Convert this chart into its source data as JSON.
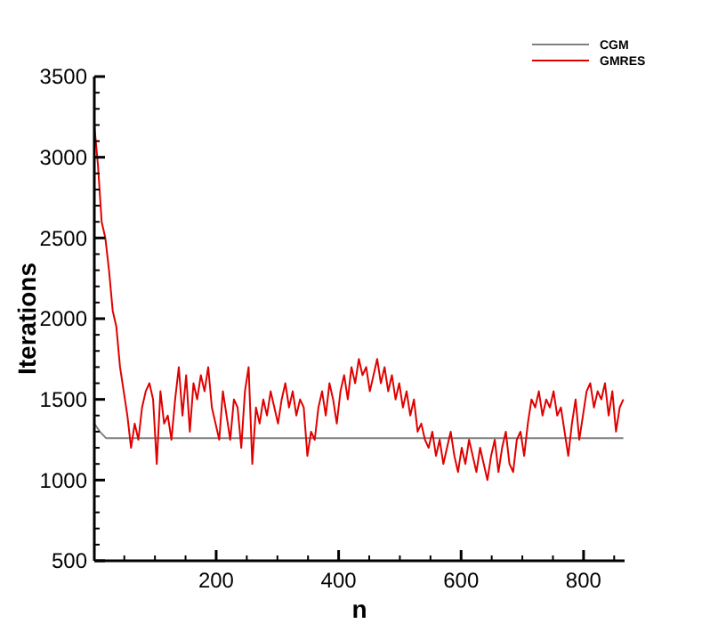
{
  "chart_data": {
    "type": "line",
    "xlabel": "n",
    "ylabel": "Iterations",
    "xlim": [
      1,
      867
    ],
    "ylim": [
      500,
      3500
    ],
    "xticks": [
      {
        "value": 50,
        "label": null
      },
      {
        "value": 100,
        "label": null
      },
      {
        "value": 150,
        "label": null
      },
      200,
      {
        "value": 250,
        "label": null
      },
      {
        "value": 300,
        "label": null
      },
      {
        "value": 350,
        "label": null
      },
      400,
      {
        "value": 450,
        "label": null
      },
      {
        "value": 500,
        "label": null
      },
      {
        "value": 550,
        "label": null
      },
      600,
      {
        "value": 650,
        "label": null
      },
      {
        "value": 700,
        "label": null
      },
      {
        "value": 750,
        "label": null
      },
      800,
      {
        "value": 850,
        "label": null
      }
    ],
    "yticks": [
      500,
      {
        "value": 600,
        "label": null
      },
      {
        "value": 700,
        "label": null
      },
      {
        "value": 800,
        "label": null
      },
      {
        "value": 900,
        "label": null
      },
      1000,
      {
        "value": 1100,
        "label": null
      },
      {
        "value": 1200,
        "label": null
      },
      {
        "value": 1300,
        "label": null
      },
      {
        "value": 1400,
        "label": null
      },
      1500,
      {
        "value": 1600,
        "label": null
      },
      {
        "value": 1700,
        "label": null
      },
      {
        "value": 1800,
        "label": null
      },
      {
        "value": 1900,
        "label": null
      },
      2000,
      {
        "value": 2100,
        "label": null
      },
      {
        "value": 2200,
        "label": null
      },
      {
        "value": 2300,
        "label": null
      },
      {
        "value": 2400,
        "label": null
      },
      2500,
      {
        "value": 2600,
        "label": null
      },
      {
        "value": 2700,
        "label": null
      },
      {
        "value": 2800,
        "label": null
      },
      {
        "value": 2900,
        "label": null
      },
      3000,
      {
        "value": 3100,
        "label": null
      },
      {
        "value": 3200,
        "label": null
      },
      {
        "value": 3300,
        "label": null
      },
      {
        "value": 3400,
        "label": null
      },
      3500
    ],
    "grid": false,
    "legend": "top right",
    "marker": "none",
    "line_style": "solid",
    "series": [
      {
        "name": "CGM",
        "color": "#808080",
        "x": [
          1,
          10,
          20,
          865
        ],
        "values": [
          1350,
          1300,
          1260,
          1260
        ]
      },
      {
        "name": "GMRES",
        "color": "#e00000",
        "x": [
          1,
          7,
          13,
          19,
          25,
          31,
          37,
          43,
          49,
          55,
          61,
          67,
          73,
          79,
          85,
          91,
          97,
          103,
          109,
          115,
          121,
          127,
          133,
          139,
          145,
          151,
          157,
          163,
          169,
          175,
          181,
          187,
          193,
          199,
          205,
          211,
          217,
          223,
          229,
          235,
          241,
          247,
          253,
          259,
          265,
          271,
          277,
          283,
          289,
          295,
          301,
          307,
          313,
          319,
          325,
          331,
          337,
          343,
          349,
          355,
          361,
          367,
          373,
          379,
          385,
          391,
          397,
          403,
          409,
          415,
          421,
          427,
          433,
          439,
          445,
          451,
          457,
          463,
          469,
          475,
          481,
          487,
          493,
          499,
          505,
          511,
          517,
          523,
          529,
          535,
          541,
          547,
          553,
          559,
          565,
          571,
          577,
          583,
          589,
          595,
          601,
          607,
          613,
          619,
          625,
          631,
          637,
          643,
          649,
          655,
          661,
          667,
          673,
          679,
          685,
          691,
          697,
          703,
          709,
          715,
          721,
          727,
          733,
          739,
          745,
          751,
          757,
          763,
          769,
          775,
          781,
          787,
          793,
          799,
          805,
          811,
          817,
          823,
          829,
          835,
          841,
          847,
          853,
          859,
          865
        ],
        "values": [
          3200,
          2950,
          2600,
          2500,
          2300,
          2050,
          1950,
          1700,
          1550,
          1400,
          1200,
          1350,
          1250,
          1450,
          1550,
          1600,
          1500,
          1100,
          1550,
          1350,
          1400,
          1250,
          1500,
          1700,
          1400,
          1650,
          1300,
          1600,
          1500,
          1650,
          1550,
          1700,
          1450,
          1350,
          1250,
          1550,
          1400,
          1250,
          1500,
          1450,
          1200,
          1550,
          1700,
          1100,
          1450,
          1350,
          1500,
          1400,
          1550,
          1450,
          1350,
          1500,
          1600,
          1450,
          1550,
          1400,
          1500,
          1450,
          1150,
          1300,
          1250,
          1450,
          1550,
          1400,
          1600,
          1500,
          1350,
          1550,
          1650,
          1500,
          1700,
          1600,
          1750,
          1650,
          1700,
          1550,
          1650,
          1750,
          1600,
          1700,
          1550,
          1650,
          1500,
          1600,
          1450,
          1550,
          1400,
          1500,
          1300,
          1350,
          1250,
          1200,
          1300,
          1150,
          1250,
          1100,
          1200,
          1300,
          1150,
          1050,
          1200,
          1100,
          1250,
          1150,
          1050,
          1200,
          1100,
          1000,
          1150,
          1250,
          1050,
          1200,
          1300,
          1100,
          1050,
          1250,
          1300,
          1150,
          1350,
          1500,
          1450,
          1550,
          1400,
          1500,
          1450,
          1550,
          1400,
          1450,
          1300,
          1150,
          1350,
          1500,
          1250,
          1400,
          1550,
          1600,
          1450,
          1550,
          1500,
          1600,
          1400,
          1550,
          1300,
          1450,
          1500
        ]
      }
    ]
  }
}
